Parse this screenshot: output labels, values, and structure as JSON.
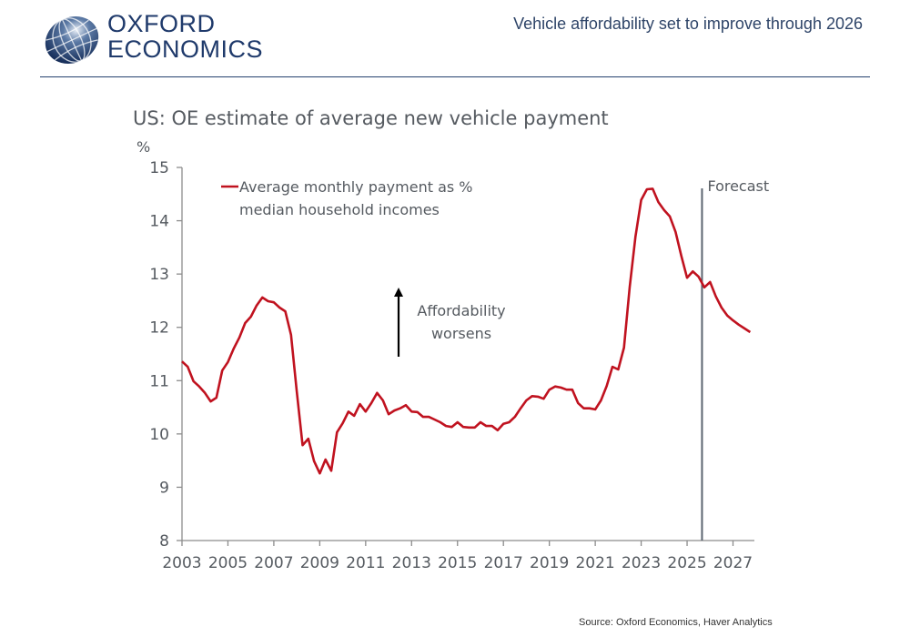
{
  "header": {
    "brand_line1": "OXFORD",
    "brand_line2": "ECONOMICS",
    "title": "Vehicle affordability set to improve through 2026",
    "logo_icon": "globe-icon"
  },
  "footer": {
    "source": "Source: Oxford Economics, Haver Analytics"
  },
  "colors": {
    "series": "#c0121f",
    "brand": "#1f3a6b",
    "axis": "#8c8c8c",
    "forecast_line": "#5b6570"
  },
  "chart_data": {
    "type": "line",
    "title": "US: OE estimate of average new vehicle payment",
    "ylabel": "%",
    "xlabel": "",
    "ylim": [
      8,
      15
    ],
    "xlim": [
      2003,
      2027.95
    ],
    "yticks": [
      8,
      9,
      10,
      11,
      12,
      13,
      14,
      15
    ],
    "xticks": [
      "2003",
      "2005",
      "2007",
      "2009",
      "2011",
      "2013",
      "2015",
      "2017",
      "2019",
      "2021",
      "2023",
      "2025",
      "2027"
    ],
    "grid": false,
    "legend": {
      "placement": "top-left",
      "entries": [
        "Average monthly payment as %",
        "median household incomes"
      ]
    },
    "annotations": {
      "forecast_label": "Forecast",
      "forecast_start": 2025.65,
      "arrow_text_line1": "Affordability",
      "arrow_text_line2": "worsens"
    },
    "frequency": "quarterly",
    "start": 2003.0,
    "series": [
      {
        "name": "Average monthly payment as % median household incomes",
        "values": [
          11.36,
          11.26,
          10.99,
          10.89,
          10.77,
          10.61,
          10.68,
          11.19,
          11.35,
          11.6,
          11.81,
          12.08,
          12.2,
          12.41,
          12.56,
          12.49,
          12.47,
          12.37,
          12.3,
          11.86,
          10.8,
          9.79,
          9.91,
          9.49,
          9.26,
          9.52,
          9.31,
          10.03,
          10.2,
          10.42,
          10.34,
          10.56,
          10.42,
          10.58,
          10.77,
          10.63,
          10.37,
          10.44,
          10.48,
          10.54,
          10.42,
          10.41,
          10.32,
          10.32,
          10.27,
          10.22,
          10.15,
          10.13,
          10.22,
          10.13,
          10.12,
          10.12,
          10.22,
          10.15,
          10.15,
          10.07,
          10.19,
          10.22,
          10.32,
          10.48,
          10.63,
          10.71,
          10.7,
          10.66,
          10.83,
          10.89,
          10.87,
          10.83,
          10.83,
          10.58,
          10.48,
          10.48,
          10.46,
          10.63,
          10.9,
          11.26,
          11.21,
          11.62,
          12.76,
          13.7,
          14.39,
          14.59,
          14.6,
          14.35,
          14.2,
          14.08,
          13.79,
          13.34,
          12.93,
          13.05,
          12.95,
          12.75,
          12.85,
          12.58,
          12.37,
          12.22,
          12.13,
          12.05,
          11.98,
          11.91
        ]
      }
    ]
  }
}
